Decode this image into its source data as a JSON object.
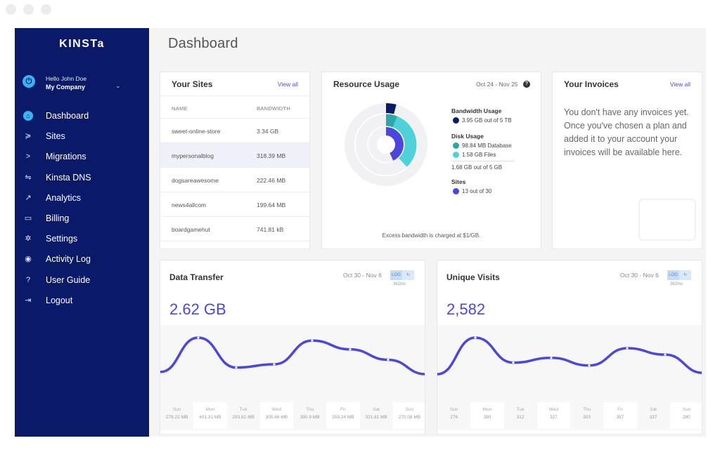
{
  "sidebar": {
    "logo": "KINSTa",
    "account": {
      "hello": "Hello John Doe",
      "company": "My Company"
    },
    "items": [
      {
        "label": "Dashboard",
        "icon": "home-icon",
        "active": true
      },
      {
        "label": "Sites",
        "icon": "sites-icon"
      },
      {
        "label": "Migrations",
        "icon": "migrations-icon"
      },
      {
        "label": "Kinsta DNS",
        "icon": "dns-icon"
      },
      {
        "label": "Analytics",
        "icon": "analytics-icon"
      },
      {
        "label": "Billing",
        "icon": "billing-icon"
      },
      {
        "label": "Settings",
        "icon": "settings-icon"
      },
      {
        "label": "Activity Log",
        "icon": "activity-icon"
      },
      {
        "label": "User Guide",
        "icon": "guide-icon"
      },
      {
        "label": "Logout",
        "icon": "logout-icon"
      }
    ]
  },
  "page": {
    "title": "Dashboard"
  },
  "sites": {
    "title": "Your Sites",
    "view_all": "View all",
    "col_name": "NAME",
    "col_bandwidth": "BANDWIDTH",
    "rows": [
      {
        "name": "sweet-online-store",
        "bw": "3.34 GB"
      },
      {
        "name": "mypersonalblog",
        "bw": "318.39 MB"
      },
      {
        "name": "dogsareawesome",
        "bw": "222.46 MB"
      },
      {
        "name": "news4allcom",
        "bw": "199.64 MB"
      },
      {
        "name": "boardgamehut",
        "bw": "741.81 kB"
      }
    ]
  },
  "resource": {
    "title": "Resource Usage",
    "range": "Oct 24 - Nov 25",
    "bandwidth_title": "Bandwidth Usage",
    "bandwidth_value": "3.95 GB out of 5 TB",
    "disk_title": "Disk Usage",
    "db": "98.84 MB Database",
    "files": "1.58 GB Files",
    "disk_total": "1.68 GB out of 5 GB",
    "sites_title": "Sites",
    "sites_value": "13 out of 30",
    "note": "Excess bandwidth is charged at $1/GB.",
    "bandwidth_fraction": 0.04,
    "disk_db_fraction": 0.06,
    "disk_files_fraction": 0.32,
    "sites_fraction": 0.433
  },
  "invoices": {
    "title": "Your Invoices",
    "view_all": "View all",
    "message": "You don't have any invoices yet. Once you've chosen a plan and added it to your account your invoices will be available here."
  },
  "data_transfer": {
    "title": "Data Transfer",
    "range": "Oct 30 - Nov 6",
    "log": "LOG",
    "refresh": "↻",
    "ms": "362ms",
    "total": "2.62 GB",
    "days": [
      {
        "d": "Sun",
        "v": "278.22 MB"
      },
      {
        "d": "Mon",
        "v": "401.31 MB"
      },
      {
        "d": "Tue",
        "v": "293.82 MB"
      },
      {
        "d": "Wed",
        "v": "305.66 MB"
      },
      {
        "d": "Thu",
        "v": "390.9 MB"
      },
      {
        "d": "Fri",
        "v": "359.24 MB"
      },
      {
        "d": "Sat",
        "v": "321.81 MB"
      },
      {
        "d": "Sun",
        "v": "270.08 MB"
      }
    ]
  },
  "unique_visits": {
    "title": "Unique Visits",
    "range": "Oct 30 - Nov 6",
    "log": "LOG",
    "refresh": "↻",
    "ms": "362ms",
    "total": "2,582",
    "days": [
      {
        "d": "Sun",
        "v": "276"
      },
      {
        "d": "Mon",
        "v": "390"
      },
      {
        "d": "Tue",
        "v": "312"
      },
      {
        "d": "Wed",
        "v": "327"
      },
      {
        "d": "Thu",
        "v": "303"
      },
      {
        "d": "Fri",
        "v": "357"
      },
      {
        "d": "Sat",
        "v": "337"
      },
      {
        "d": "Sun",
        "v": "280"
      }
    ]
  },
  "colors": {
    "sidebar": "#0b1a68",
    "accent": "#4b46de",
    "teal": "#4fd1d9",
    "teal_dark": "#2aa7a8",
    "navy": "#0b1a68",
    "active_icon": "#3bb3f2"
  }
}
